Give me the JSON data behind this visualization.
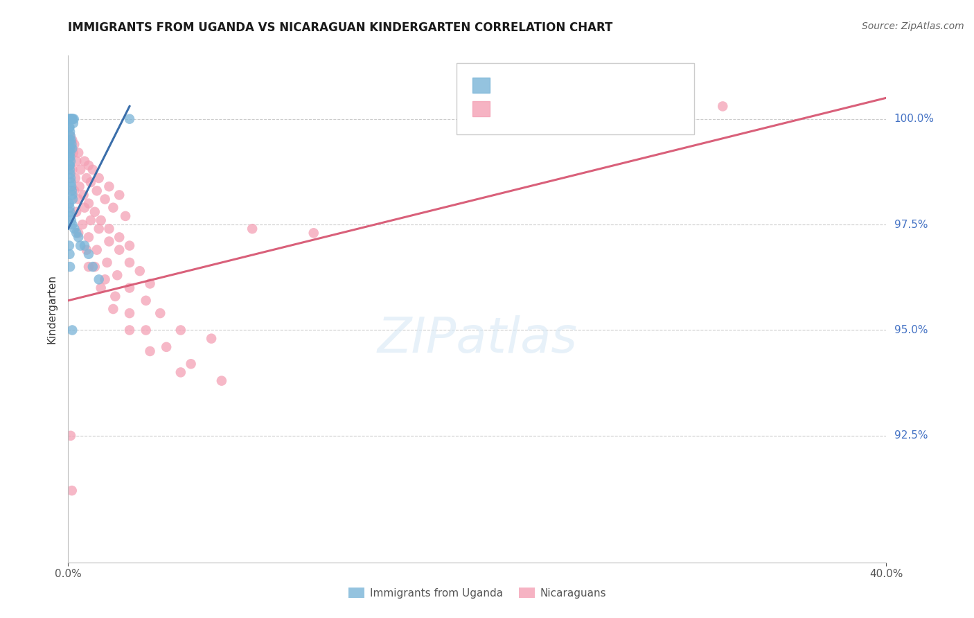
{
  "title": "IMMIGRANTS FROM UGANDA VS NICARAGUAN KINDERGARTEN CORRELATION CHART",
  "source": "Source: ZipAtlas.com",
  "ylabel": "Kindergarten",
  "ytick_vals": [
    92.5,
    95.0,
    97.5,
    100.0
  ],
  "ytick_labels": [
    "92.5%",
    "95.0%",
    "97.5%",
    "100.0%"
  ],
  "blue_color": "#7ab4d8",
  "pink_color": "#f4a0b5",
  "blue_line_color": "#3a6eaa",
  "pink_line_color": "#d9607a",
  "watermark_text": "ZIPatlas",
  "xlim_left": 0.0,
  "xlim_right": 40.0,
  "ylim_bottom": 89.5,
  "ylim_top": 101.5,
  "blue_line_x0": 0.0,
  "blue_line_x1": 3.0,
  "blue_line_y0": 97.4,
  "blue_line_y1": 100.3,
  "pink_line_x0": 0.0,
  "pink_line_x1": 40.0,
  "pink_line_y0": 95.7,
  "pink_line_y1": 100.5,
  "blue_x": [
    0.05,
    0.08,
    0.1,
    0.12,
    0.15,
    0.18,
    0.2,
    0.22,
    0.25,
    0.28,
    0.05,
    0.07,
    0.09,
    0.11,
    0.14,
    0.17,
    0.2,
    0.1,
    0.12,
    0.08,
    0.05,
    0.06,
    0.08,
    0.1,
    0.12,
    0.14,
    0.16,
    0.18,
    0.2,
    0.22,
    0.05,
    0.07,
    0.09,
    0.11,
    0.15,
    0.2,
    0.3,
    0.4,
    0.5,
    0.6,
    0.05,
    0.07,
    0.09,
    0.8,
    1.0,
    1.2,
    1.5,
    0.06,
    0.08,
    0.1,
    0.2,
    3.0
  ],
  "blue_y": [
    100.0,
    100.0,
    100.0,
    100.0,
    100.0,
    100.0,
    100.0,
    100.0,
    99.9,
    100.0,
    99.8,
    99.8,
    99.7,
    99.6,
    99.5,
    99.4,
    99.3,
    99.2,
    99.0,
    98.9,
    99.1,
    98.9,
    98.8,
    98.7,
    98.6,
    98.5,
    98.4,
    98.3,
    98.2,
    98.1,
    98.0,
    97.9,
    97.8,
    97.7,
    97.6,
    97.5,
    97.4,
    97.3,
    97.2,
    97.0,
    97.0,
    96.8,
    96.5,
    97.0,
    96.8,
    96.5,
    96.2,
    99.5,
    99.3,
    99.1,
    95.0,
    100.0
  ],
  "pink_x": [
    0.1,
    0.2,
    0.3,
    0.5,
    0.8,
    1.0,
    1.2,
    1.5,
    2.0,
    2.5,
    0.15,
    0.25,
    0.4,
    0.6,
    0.9,
    1.1,
    1.4,
    1.8,
    2.2,
    2.8,
    0.2,
    0.35,
    0.55,
    0.75,
    1.0,
    1.3,
    1.6,
    2.0,
    2.5,
    3.0,
    0.3,
    0.5,
    0.8,
    1.1,
    1.5,
    2.0,
    2.5,
    3.0,
    3.5,
    4.0,
    0.4,
    0.7,
    1.0,
    1.4,
    1.9,
    2.4,
    3.0,
    3.8,
    4.5,
    5.5,
    0.5,
    0.9,
    1.3,
    1.8,
    2.3,
    3.0,
    3.8,
    4.8,
    6.0,
    7.5,
    1.0,
    1.6,
    2.2,
    3.0,
    4.0,
    5.5,
    7.0,
    9.0,
    12.0,
    32.0,
    0.12,
    0.18
  ],
  "pink_y": [
    99.6,
    99.5,
    99.4,
    99.2,
    99.0,
    98.9,
    98.8,
    98.6,
    98.4,
    98.2,
    99.3,
    99.2,
    99.0,
    98.8,
    98.6,
    98.5,
    98.3,
    98.1,
    97.9,
    97.7,
    98.8,
    98.6,
    98.4,
    98.2,
    98.0,
    97.8,
    97.6,
    97.4,
    97.2,
    97.0,
    98.3,
    98.1,
    97.9,
    97.6,
    97.4,
    97.1,
    96.9,
    96.6,
    96.4,
    96.1,
    97.8,
    97.5,
    97.2,
    96.9,
    96.6,
    96.3,
    96.0,
    95.7,
    95.4,
    95.0,
    97.3,
    96.9,
    96.5,
    96.2,
    95.8,
    95.4,
    95.0,
    94.6,
    94.2,
    93.8,
    96.5,
    96.0,
    95.5,
    95.0,
    94.5,
    94.0,
    94.8,
    97.4,
    97.3,
    100.3,
    92.5,
    91.2
  ]
}
